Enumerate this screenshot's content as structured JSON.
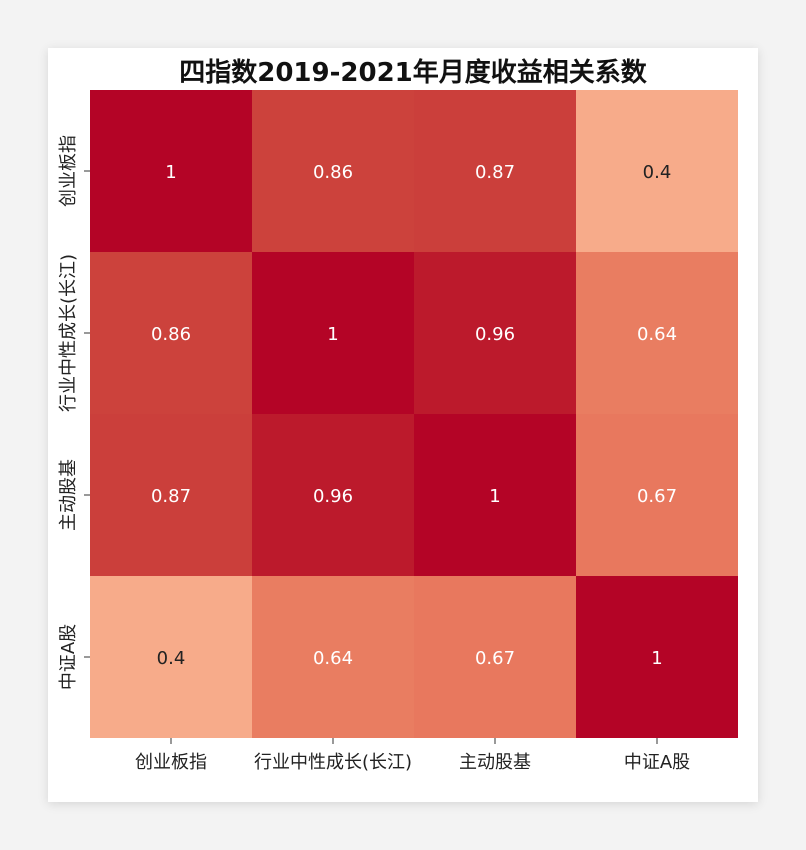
{
  "chart_data": {
    "type": "heatmap",
    "title": "四指数2019-2021年月度收益相关系数",
    "xlabel": "",
    "ylabel": "",
    "x_categories": [
      "创业板指",
      "行业中性成长(长江)",
      "主动股基",
      "中证A股"
    ],
    "y_categories": [
      "创业板指",
      "行业中性成长(长江)",
      "主动股基",
      "中证A股"
    ],
    "values": [
      [
        1,
        0.86,
        0.87,
        0.4
      ],
      [
        0.86,
        1,
        0.96,
        0.64
      ],
      [
        0.87,
        0.96,
        1,
        0.67
      ],
      [
        0.4,
        0.64,
        0.67,
        1
      ]
    ],
    "value_labels": [
      [
        "1",
        "0.86",
        "0.87",
        "0.4"
      ],
      [
        "0.86",
        "1",
        "0.96",
        "0.64"
      ],
      [
        "0.87",
        "0.96",
        "1",
        "0.67"
      ],
      [
        "0.4",
        "0.64",
        "0.67",
        "1"
      ]
    ],
    "colormap": "reds",
    "colors": {
      "1": "#b40426",
      "0.96": "#bc1a2c",
      "0.87": "#cb3f3b",
      "0.86": "#cc423c",
      "0.67": "#e8785e",
      "0.64": "#e97d61",
      "0.4": "#f7ab8a"
    },
    "annotation_color_dark_cell": "#ffffff",
    "annotation_color_light_cell": "#222222",
    "grid": false,
    "colorbar": false
  }
}
